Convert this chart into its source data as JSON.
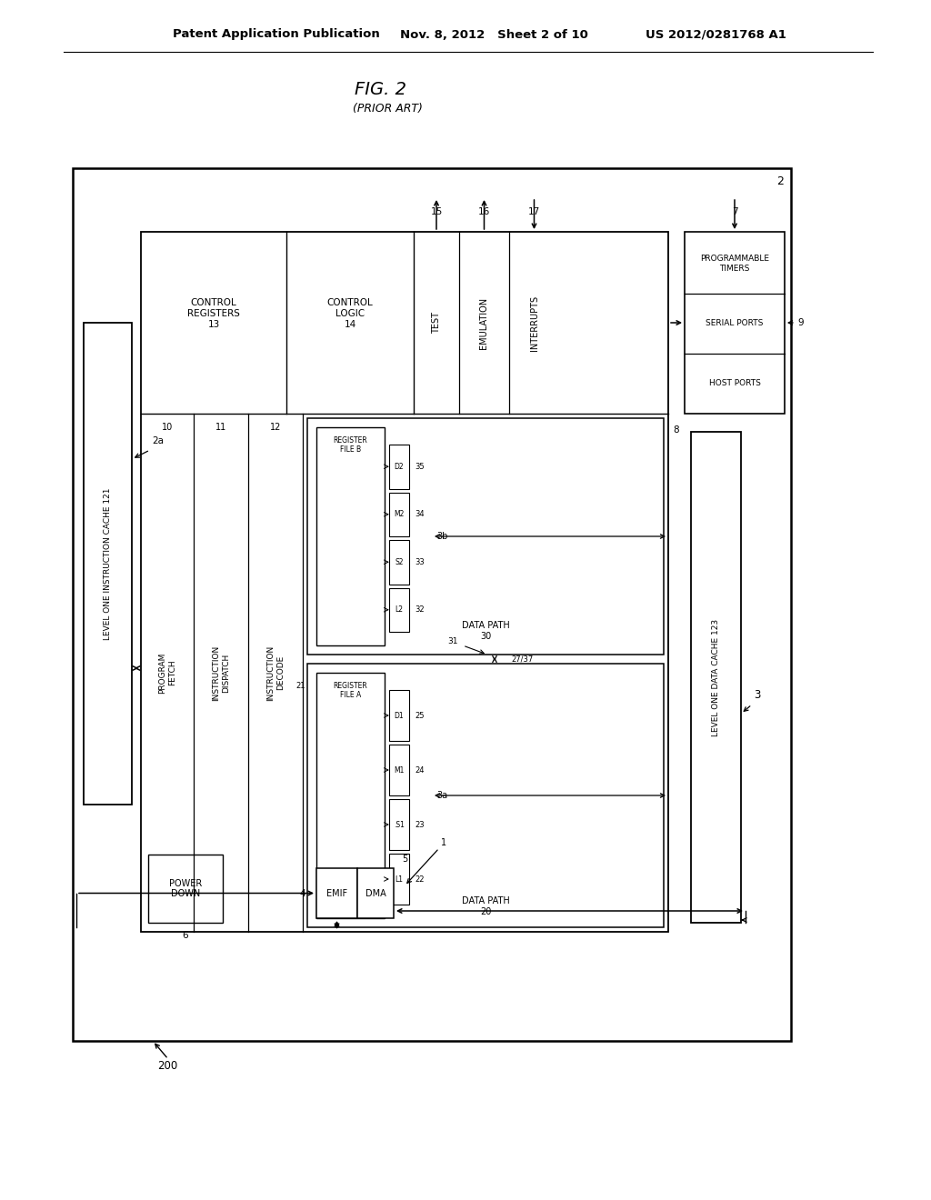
{
  "header_left": "Patent Application Publication",
  "header_mid": "Nov. 8, 2012   Sheet 2 of 10",
  "header_right": "US 2012/0281768 A1",
  "fig_label": "FIG. 2",
  "fig_sublabel": "(PRIOR ART)",
  "bg_color": "#ffffff"
}
